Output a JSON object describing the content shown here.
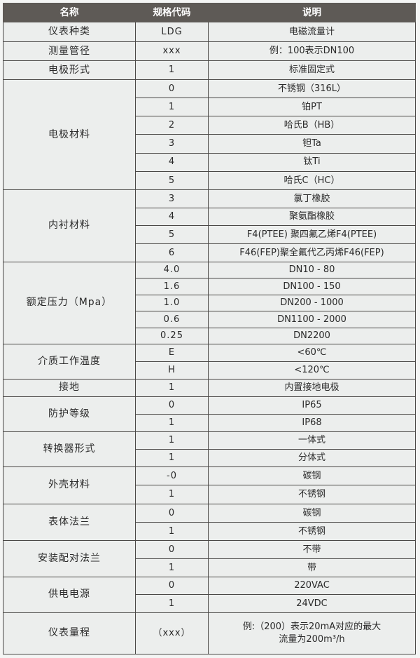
{
  "header": {
    "name": "名称",
    "code": "规格代码",
    "desc": "说明"
  },
  "groups": [
    {
      "name": "仪表种类",
      "rows": [
        [
          "LDG",
          "电磁流量计"
        ]
      ]
    },
    {
      "name": "测量管径",
      "rows": [
        [
          "xxx",
          "例：100表示DN100"
        ]
      ]
    },
    {
      "name": "电极形式",
      "rows": [
        [
          "1",
          "标准固定式"
        ]
      ]
    },
    {
      "name": "电极材料",
      "rows": [
        [
          "0",
          "不锈钢（316L）"
        ],
        [
          "1",
          "铂PT"
        ],
        [
          "2",
          "哈氏B（HB）"
        ],
        [
          "3",
          "钽Ta"
        ],
        [
          "4",
          "钛Ti"
        ],
        [
          "5",
          "哈氏C（HC）"
        ]
      ]
    },
    {
      "name": "内衬材料",
      "rows": [
        [
          "3",
          "氯丁橡胶"
        ],
        [
          "4",
          "聚氨酯橡胶"
        ],
        [
          "5",
          "F4(PTEE) 聚四氟乙烯F4(PTEE)"
        ],
        [
          "6",
          "F46(FEP)聚全氟代乙丙烯F46(FEP)"
        ]
      ]
    },
    {
      "name": "额定压力（Mpa）",
      "rows": [
        [
          "4.0",
          "DN10 - 80"
        ],
        [
          "1.6",
          "DN100 - 150"
        ],
        [
          "1.0",
          "DN200 - 1000"
        ],
        [
          "0.6",
          "DN1100 - 2000"
        ],
        [
          "0.25",
          "DN2200"
        ]
      ]
    },
    {
      "name": "介质工作温度",
      "rows": [
        [
          "E",
          "<60℃"
        ],
        [
          "H",
          "<120℃"
        ]
      ]
    },
    {
      "name": "接地",
      "rows": [
        [
          "1",
          "内置接地电极"
        ]
      ]
    },
    {
      "name": "防护等级",
      "rows": [
        [
          "0",
          "IP65"
        ],
        [
          "1",
          "IP68"
        ]
      ]
    },
    {
      "name": "转换器形式",
      "rows": [
        [
          "1",
          "一体式"
        ],
        [
          "1",
          "分体式"
        ]
      ]
    },
    {
      "name": "外壳材料",
      "rows": [
        [
          "-0",
          "碳钢"
        ],
        [
          "1",
          "不锈钢"
        ]
      ]
    },
    {
      "name": "表体法兰",
      "rows": [
        [
          "0",
          "碳钢"
        ],
        [
          "1",
          "不锈钢"
        ]
      ]
    },
    {
      "name": "安装配对法兰",
      "rows": [
        [
          "0",
          "不带"
        ],
        [
          "1",
          "带"
        ]
      ]
    },
    {
      "name": "供电电源",
      "rows": [
        [
          "0",
          "220VAC"
        ],
        [
          "1",
          "24VDC"
        ]
      ]
    },
    {
      "name": "仪表量程",
      "rows": [
        [
          "（xxx）",
          "例:（200）表示20mA对应的最大\n流量为200m³/h"
        ]
      ]
    }
  ]
}
